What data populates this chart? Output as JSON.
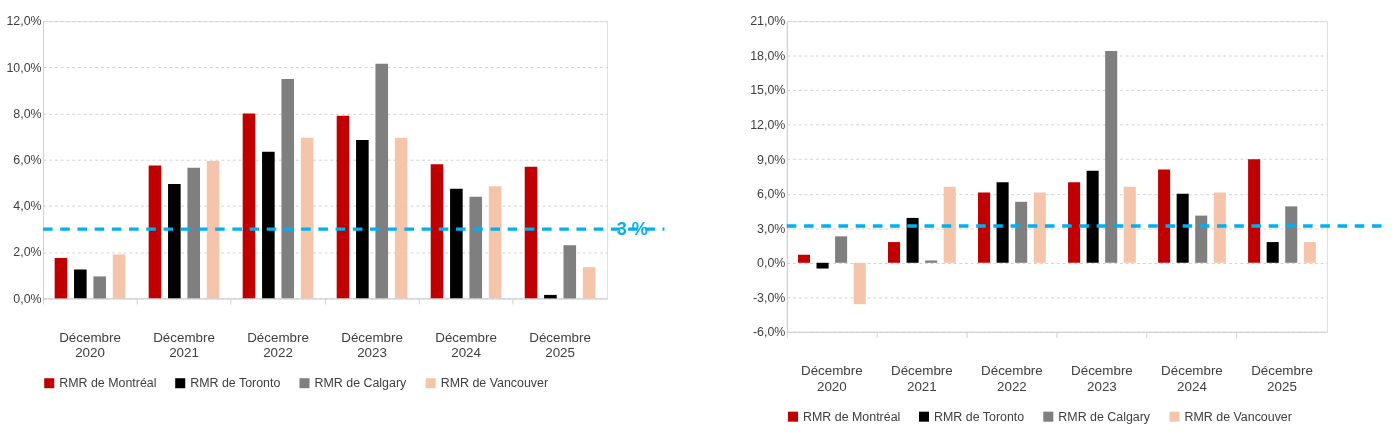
{
  "chart_data": [
    {
      "type": "bar",
      "categories": [
        "Décembre 2020",
        "Décembre 2021",
        "Décembre 2022",
        "Décembre 2023",
        "Décembre 2024",
        "Décembre 2025"
      ],
      "series": [
        {
          "name": "RMR de Montréal",
          "color": "#c00000",
          "values": [
            1.75,
            5.75,
            8.0,
            7.9,
            5.8,
            5.7
          ]
        },
        {
          "name": "RMR de Toronto",
          "color": "#000000",
          "values": [
            1.25,
            4.95,
            6.35,
            6.85,
            4.75,
            0.15
          ]
        },
        {
          "name": "RMR de Calgary",
          "color": "#7f7f7f",
          "values": [
            0.95,
            5.65,
            9.5,
            10.15,
            4.4,
            2.3
          ]
        },
        {
          "name": "RMR de Vancouver",
          "color": "#f4c5aa",
          "values": [
            1.9,
            5.95,
            6.95,
            6.95,
            4.85,
            1.35
          ]
        }
      ],
      "ylim": [
        0,
        12
      ],
      "yticks": [
        {
          "value": 0,
          "label": "0,0%"
        },
        {
          "value": 2,
          "label": "2,0%"
        },
        {
          "value": 4,
          "label": "4,0%"
        },
        {
          "value": 6,
          "label": "6,0%"
        },
        {
          "value": 8,
          "label": "8,0%"
        },
        {
          "value": 10,
          "label": "10,0%"
        },
        {
          "value": 12,
          "label": "12,0%"
        }
      ],
      "ref_lines": [
        {
          "axis": "y",
          "value": 3,
          "label": "3 %",
          "color": "#00b0f0",
          "line_style": "dashed"
        }
      ],
      "grid": "y",
      "legend": "bottom"
    },
    {
      "type": "bar",
      "categories": [
        "Décembre 2020",
        "Décembre 2021",
        "Décembre 2022",
        "Décembre 2023",
        "Décembre 2024",
        "Décembre 2025"
      ],
      "series": [
        {
          "name": "RMR de Montréal",
          "color": "#c00000",
          "values": [
            0.7,
            1.8,
            6.1,
            7.0,
            8.1,
            9.0
          ]
        },
        {
          "name": "RMR de Toronto",
          "color": "#000000",
          "values": [
            -0.5,
            3.9,
            7.0,
            8.0,
            6.0,
            1.8
          ]
        },
        {
          "name": "RMR de Calgary",
          "color": "#7f7f7f",
          "values": [
            2.3,
            0.2,
            5.3,
            18.4,
            4.1,
            4.9
          ]
        },
        {
          "name": "RMR de Vancouver",
          "color": "#f4c5aa",
          "values": [
            -3.6,
            6.6,
            6.1,
            6.6,
            6.1,
            1.8
          ]
        }
      ],
      "ylim": [
        -6,
        21
      ],
      "yticks": [
        {
          "value": -6,
          "label": "-6,0%"
        },
        {
          "value": -3,
          "label": "-3,0%"
        },
        {
          "value": 0,
          "label": "0,0%"
        },
        {
          "value": 3,
          "label": "3,0%"
        },
        {
          "value": 6,
          "label": "6,0%"
        },
        {
          "value": 9,
          "label": "9,0%"
        },
        {
          "value": 12,
          "label": "12,0%"
        },
        {
          "value": 15,
          "label": "15,0%"
        },
        {
          "value": 18,
          "label": "18,0%"
        },
        {
          "value": 21,
          "label": "21,0%"
        }
      ],
      "ref_lines": [
        {
          "axis": "y",
          "value": 3.2,
          "label": null,
          "color": "#00b0f0",
          "line_style": "dashed"
        }
      ],
      "grid": "y",
      "legend": "bottom"
    }
  ]
}
